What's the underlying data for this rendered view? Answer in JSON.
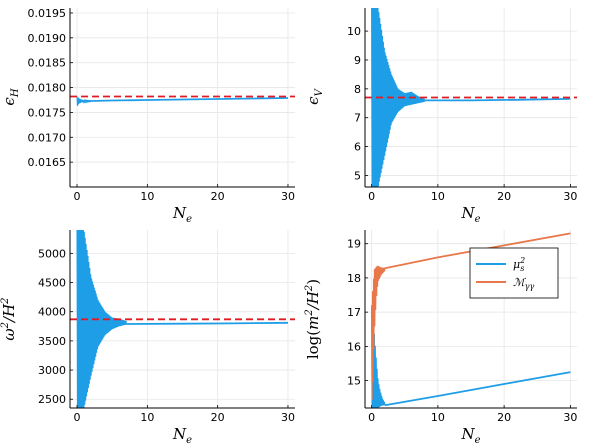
{
  "chart_data": [
    {
      "type": "line",
      "xlabel": "N_e",
      "ylabel": "ϵ_H",
      "xlim": [
        -1,
        31
      ],
      "ylim": [
        0.016,
        0.0196
      ],
      "xticks": [
        0,
        10,
        20,
        30
      ],
      "xtick_labels": [
        "0",
        "10",
        "20",
        "30"
      ],
      "yticks": [
        0.0165,
        0.017,
        0.0175,
        0.018,
        0.0185,
        0.019,
        0.0195
      ],
      "ytick_labels": [
        "0.0165",
        "0.0170",
        "0.0175",
        "0.0180",
        "0.0185",
        "0.0190",
        "0.0195"
      ],
      "grid": true,
      "series": [
        {
          "kind": "oscillation",
          "color": "#1f9ee8",
          "x": [
            0,
            0.3,
            0.6,
            1.0,
            2.0
          ],
          "ylo": [
            0.01762,
            0.01768,
            0.0177,
            0.01771,
            0.01772
          ],
          "yhi": [
            0.01782,
            0.01778,
            0.01776,
            0.01774,
            0.01773
          ]
        },
        {
          "kind": "line",
          "color": "#1f9ee8",
          "x": [
            0,
            2,
            5,
            10,
            20,
            30
          ],
          "y": [
            0.01773,
            0.01773,
            0.01774,
            0.01775,
            0.01777,
            0.01779
          ]
        },
        {
          "kind": "hline",
          "color": "#e01b24",
          "dash": true,
          "y": 0.01782
        }
      ]
    },
    {
      "type": "line",
      "xlabel": "N_e",
      "ylabel": "ϵ_V",
      "xlim": [
        -1,
        31
      ],
      "ylim": [
        4.6,
        10.8
      ],
      "xticks": [
        0,
        10,
        20,
        30
      ],
      "xtick_labels": [
        "0",
        "10",
        "20",
        "30"
      ],
      "yticks": [
        5,
        6,
        7,
        8,
        9,
        10
      ],
      "ytick_labels": [
        "5",
        "6",
        "7",
        "8",
        "9",
        "10"
      ],
      "grid": true,
      "series": [
        {
          "kind": "oscillation",
          "color": "#1f9ee8",
          "x": [
            0,
            0.25,
            0.5,
            1.0,
            2.0,
            3.0,
            4.0,
            5.0,
            6.0,
            7.0,
            8.0
          ],
          "ylo": [
            4.6,
            4.6,
            4.6,
            4.6,
            5.7,
            6.8,
            7.2,
            7.4,
            7.45,
            7.5,
            7.55
          ],
          "yhi": [
            10.8,
            10.8,
            10.8,
            10.8,
            9.3,
            8.5,
            8.0,
            7.85,
            7.9,
            7.75,
            7.65
          ]
        },
        {
          "kind": "line",
          "color": "#1f9ee8",
          "x": [
            8,
            15,
            22,
            30
          ],
          "y": [
            7.6,
            7.6,
            7.62,
            7.65
          ]
        },
        {
          "kind": "hline",
          "color": "#e01b24",
          "dash": true,
          "y": 7.7
        }
      ]
    },
    {
      "type": "line",
      "xlabel": "N_e",
      "ylabel": "ω²/H²",
      "xlim": [
        -1,
        31
      ],
      "ylim": [
        2350,
        5400
      ],
      "xticks": [
        0,
        10,
        20,
        30
      ],
      "xtick_labels": [
        "0",
        "10",
        "20",
        "30"
      ],
      "yticks": [
        2500,
        3000,
        3500,
        4000,
        4500,
        5000
      ],
      "ytick_labels": [
        "2500",
        "3000",
        "3500",
        "4000",
        "4500",
        "5000"
      ],
      "grid": true,
      "series": [
        {
          "kind": "oscillation",
          "color": "#1f9ee8",
          "x": [
            0,
            0.3,
            0.7,
            1.0,
            2.0,
            3.0,
            4.0,
            5.0,
            6.0,
            7.0
          ],
          "ylo": [
            2350,
            2350,
            2350,
            2350,
            2900,
            3400,
            3600,
            3700,
            3750,
            3780
          ],
          "yhi": [
            5400,
            5400,
            5400,
            5400,
            4600,
            4200,
            4000,
            3900,
            3880,
            3840
          ]
        },
        {
          "kind": "line",
          "color": "#1f9ee8",
          "x": [
            7,
            15,
            22,
            30
          ],
          "y": [
            3790,
            3795,
            3800,
            3810
          ]
        },
        {
          "kind": "hline",
          "color": "#e01b24",
          "dash": true,
          "y": 3870
        }
      ]
    },
    {
      "type": "line",
      "xlabel": "N_e",
      "ylabel": "log(m²/H²)",
      "xlim": [
        -1,
        31
      ],
      "ylim": [
        14.2,
        19.4
      ],
      "xticks": [
        0,
        10,
        20,
        30
      ],
      "xtick_labels": [
        "0",
        "10",
        "20",
        "30"
      ],
      "yticks": [
        15,
        16,
        17,
        18,
        19
      ],
      "ytick_labels": [
        "15",
        "16",
        "17",
        "18",
        "19"
      ],
      "grid": true,
      "legend": {
        "position": "top-right",
        "entries": [
          "μ_s²",
          "ℳ_γγ"
        ]
      },
      "series": [
        {
          "kind": "oscillation",
          "color": "#1f9ee8",
          "x": [
            0.0,
            0.2,
            0.4,
            0.6,
            0.8,
            1.0,
            1.3,
            1.6,
            2.0
          ],
          "ylo": [
            14.2,
            14.2,
            14.2,
            14.2,
            14.2,
            14.2,
            14.25,
            14.27,
            14.28
          ],
          "yhi": [
            17.1,
            17.0,
            16.4,
            15.9,
            15.4,
            15.0,
            14.7,
            14.5,
            14.35
          ]
        },
        {
          "kind": "line",
          "name": "μ_s²",
          "color": "#1f9ee8",
          "x": [
            2,
            10,
            20,
            30
          ],
          "y": [
            14.28,
            14.55,
            14.9,
            15.25
          ]
        },
        {
          "kind": "oscillation",
          "color": "#e8774a",
          "x": [
            0.0,
            0.2,
            0.4,
            0.6,
            0.8,
            1.0,
            1.5,
            2.0
          ],
          "ylo": [
            14.2,
            14.9,
            16.3,
            17.0,
            17.6,
            17.9,
            18.1,
            18.2
          ],
          "yhi": [
            17.2,
            17.8,
            18.25,
            18.3,
            18.35,
            18.35,
            18.3,
            18.3
          ]
        },
        {
          "kind": "line",
          "name": "ℳ_γγ",
          "color": "#e8774a",
          "x": [
            2,
            10,
            20,
            30
          ],
          "y": [
            18.28,
            18.6,
            18.95,
            19.3
          ]
        }
      ]
    }
  ]
}
